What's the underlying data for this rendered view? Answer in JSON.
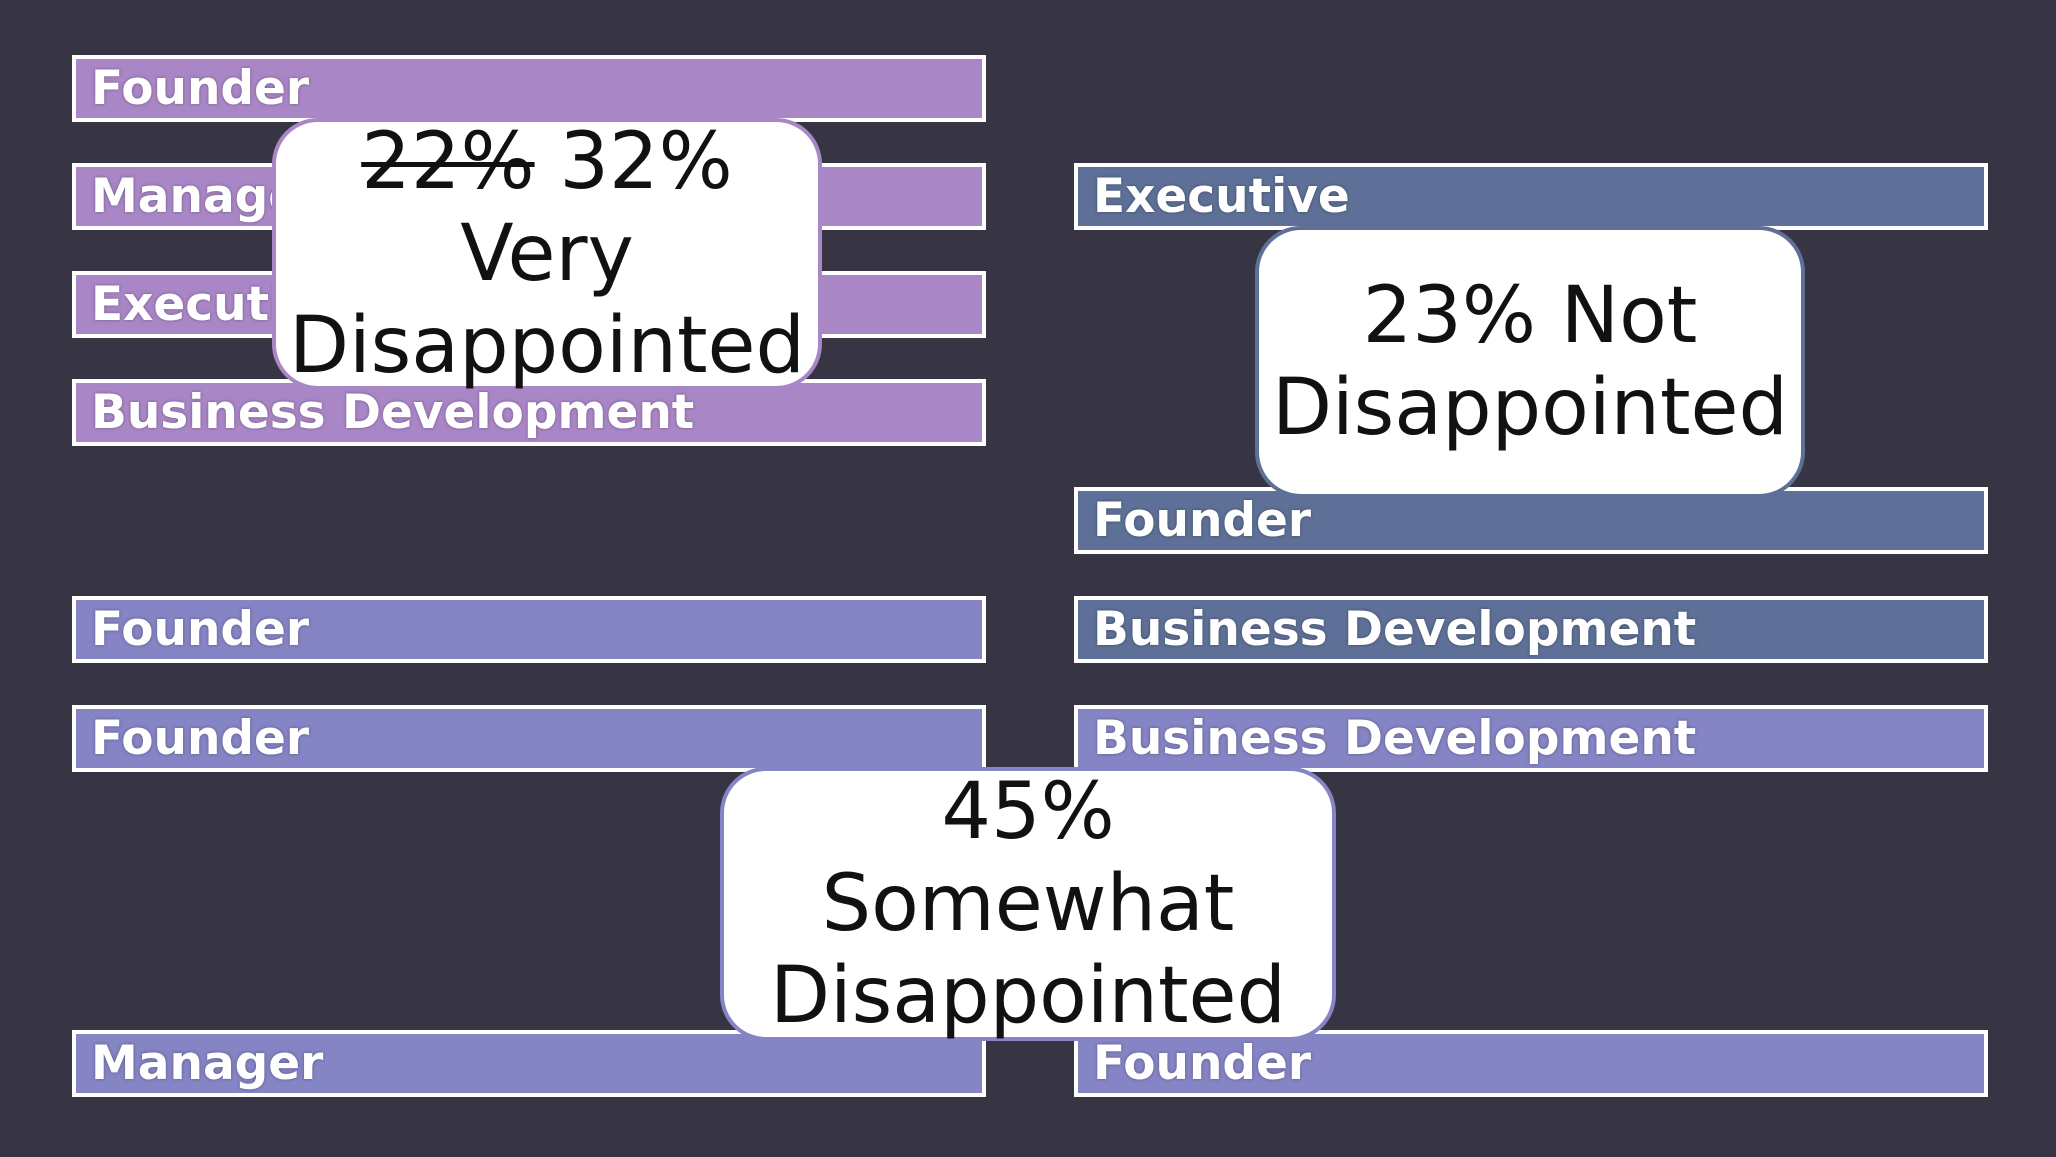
{
  "colors": {
    "background": "#373444",
    "very_disappointed_bars": "#a986c6",
    "not_disappointed_bars": "#5e7097",
    "somewhat_disappointed_bars": "#8584c4"
  },
  "very_group": {
    "bars": [
      "Founder",
      "Manager",
      "Executive",
      "Business Development"
    ]
  },
  "not_group": {
    "bars": [
      "Executive",
      "Founder",
      "Business Development"
    ]
  },
  "somewhat_group": {
    "bars": [
      "Founder",
      "Founder",
      "Business Development",
      "Manager",
      "Founder"
    ]
  },
  "callouts": {
    "very": {
      "old_value": "22%",
      "new_value": "32%",
      "label_top": "Very",
      "label_bottom": "Disappointed"
    },
    "not": {
      "line1": "23% Not",
      "line2": "Disappointed"
    },
    "somewhat": {
      "line1": "45% Somewhat",
      "line2": "Disappointed"
    }
  }
}
